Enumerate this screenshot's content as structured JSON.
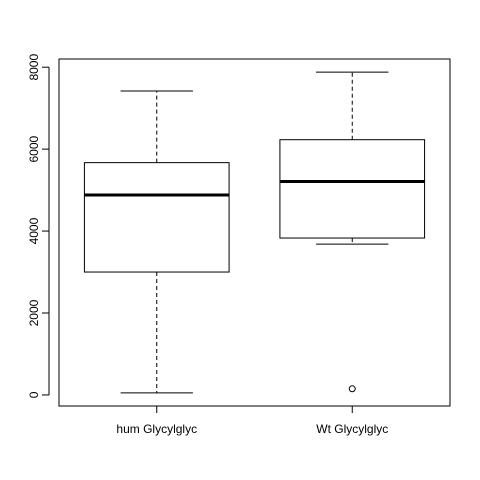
{
  "chart_data": {
    "type": "box",
    "categories": [
      "hum Glycylglyc",
      "Wt Glycylglyc"
    ],
    "boxes": [
      {
        "category": "hum Glycylglyc",
        "whisker_low": 50,
        "q1": 3000,
        "median": 4880,
        "q3": 5670,
        "whisker_high": 7420,
        "outliers": []
      },
      {
        "category": "Wt Glycylglyc",
        "whisker_low": 3680,
        "q1": 3830,
        "median": 5210,
        "q3": 6230,
        "whisker_high": 7880,
        "outliers": [
          150
        ]
      }
    ],
    "y_ticks": [
      0,
      2000,
      4000,
      6000,
      8000
    ],
    "y_tick_labels": [
      "0",
      "2000",
      "4000",
      "6000",
      "8000"
    ],
    "ylim": [
      -270,
      8200
    ],
    "title": "",
    "xlabel": "",
    "ylabel": "",
    "grid": false,
    "colors": {
      "box_fill": "#ffffff",
      "stroke": "#000000"
    }
  }
}
